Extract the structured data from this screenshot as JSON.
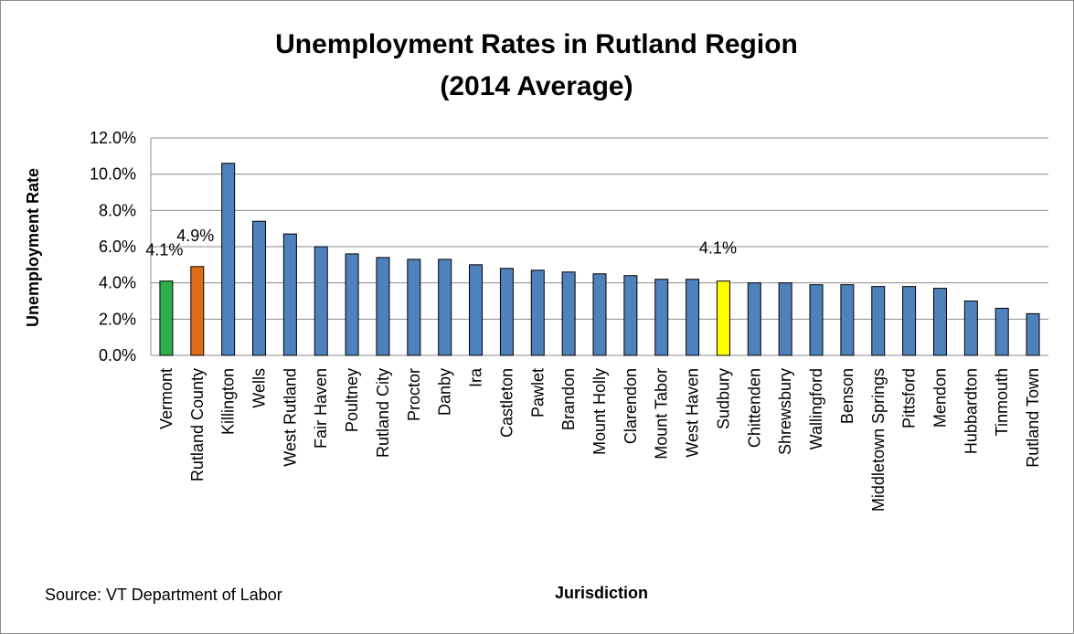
{
  "chart_data": {
    "type": "bar",
    "title": "Unemployment Rates in Rutland Region",
    "subtitle": "(2014 Average)",
    "xlabel": "Jurisdiction",
    "ylabel": "Unemployment Rate",
    "ylim": [
      0,
      12
    ],
    "yticks": [
      "0.0%",
      "2.0%",
      "4.0%",
      "6.0%",
      "8.0%",
      "10.0%",
      "12.0%"
    ],
    "grid": true,
    "legend": "none",
    "categories": [
      "Vermont",
      "Rutland County",
      "Killington",
      "Wells",
      "West Rutland",
      "Fair Haven",
      "Poultney",
      "Rutland City",
      "Proctor",
      "Danby",
      "Ira",
      "Castleton",
      "Pawlet",
      "Brandon",
      "Mount Holly",
      "Clarendon",
      "Mount Tabor",
      "West Haven",
      "Sudbury",
      "Chittenden",
      "Shrewsbury",
      "Wallingford",
      "Benson",
      "Middletown Springs",
      "Pittsford",
      "Mendon",
      "Hubbardton",
      "Tinmouth",
      "Rutland Town"
    ],
    "values": [
      4.1,
      4.9,
      10.6,
      7.4,
      6.7,
      6.0,
      5.6,
      5.4,
      5.3,
      5.3,
      5.0,
      4.8,
      4.7,
      4.6,
      4.5,
      4.4,
      4.2,
      4.2,
      4.1,
      4.0,
      4.0,
      3.9,
      3.9,
      3.8,
      3.8,
      3.7,
      3.0,
      2.6,
      2.3
    ],
    "colors": {
      "default": "#4f81bd",
      "Vermont": "#2dae4b",
      "Rutland County": "#e06c17",
      "Sudbury": "#ffff00"
    },
    "data_labels": [
      {
        "category": "Vermont",
        "text": "4.1%"
      },
      {
        "category": "Rutland County",
        "text": "4.9%"
      },
      {
        "category": "Sudbury",
        "text": "4.1%"
      }
    ],
    "annotations": [
      "Source: VT Department of Labor"
    ]
  }
}
